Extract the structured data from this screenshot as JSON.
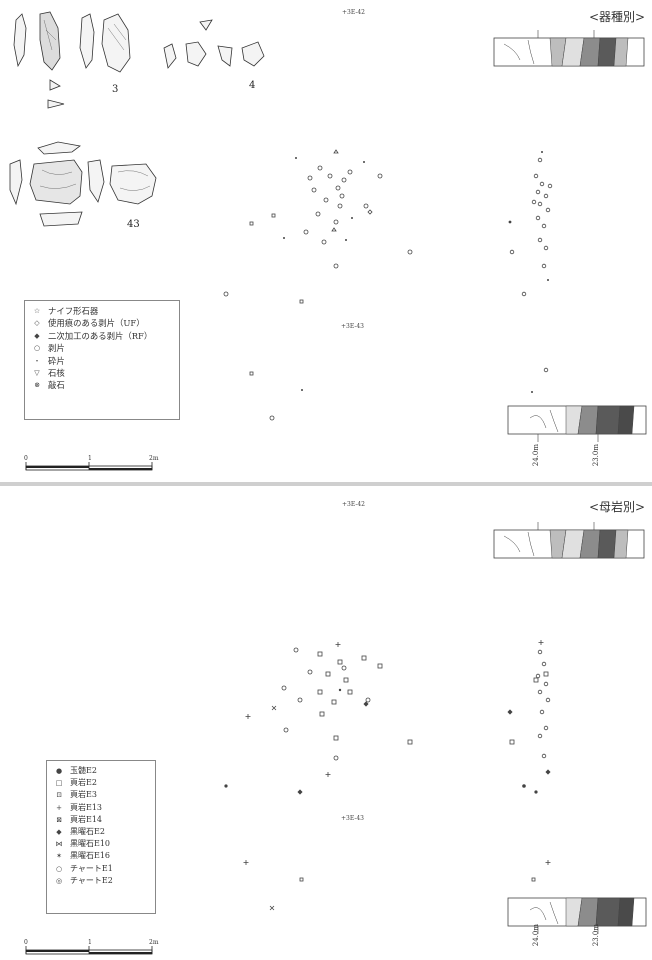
{
  "top_panel": {
    "title": "<器種別>",
    "grid_label_upper": "+3E-42",
    "grid_label_lower": "+3E-43",
    "figure_labels": [
      "3",
      "4",
      "43"
    ],
    "legend": [
      {
        "symbol": "☆",
        "label": "ナイフ形石器"
      },
      {
        "symbol": "◇",
        "label": "使用痕のある剥片（UF）"
      },
      {
        "symbol": "◆",
        "label": "二次加工のある剥片（RF）"
      },
      {
        "symbol": "○",
        "label": "剥片"
      },
      {
        "symbol": "・",
        "label": "砕片"
      },
      {
        "symbol": "▽",
        "label": "石核"
      },
      {
        "symbol": "⊗",
        "label": "敲石"
      }
    ],
    "scale": {
      "ticks": [
        "0",
        "1",
        "2m"
      ]
    },
    "section_labels": [
      "24.0m",
      "23.0m"
    ]
  },
  "bottom_panel": {
    "title": "<母岩別>",
    "grid_label_upper": "+3E-42",
    "grid_label_lower": "+3E-43",
    "legend": [
      {
        "symbol": "●",
        "label": "玉髄E2"
      },
      {
        "symbol": "□",
        "label": "頁岩E2"
      },
      {
        "symbol": "⊡",
        "label": "頁岩E3"
      },
      {
        "symbol": "+",
        "label": "頁岩E13"
      },
      {
        "symbol": "⊠",
        "label": "頁岩E14"
      },
      {
        "symbol": "◆",
        "label": "黒曜石E2"
      },
      {
        "symbol": "⋈",
        "label": "黒曜石E10"
      },
      {
        "symbol": "✶",
        "label": "黒曜石E16"
      },
      {
        "symbol": "○",
        "label": "チャートE1"
      },
      {
        "symbol": "◎",
        "label": "チャートE2"
      }
    ],
    "scale": {
      "ticks": [
        "0",
        "1",
        "2m"
      ]
    },
    "section_labels": [
      "24.0m",
      "23.0m"
    ]
  },
  "colors": {
    "section_fills": [
      "#ffffff",
      "#e8e8e8",
      "#bdbdbd",
      "#9a9a9a",
      "#6f6f6f",
      "#4a4a4a",
      "#ffffff"
    ],
    "separator": "#cfcfcf"
  }
}
